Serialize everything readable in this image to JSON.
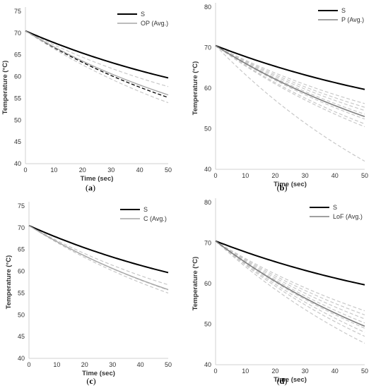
{
  "chart_data": [
    {
      "panel": "a",
      "caption": "(a)",
      "type": "line",
      "xlabel": "Time (sec)",
      "ylabel": "Temperature (°C)",
      "xlim": [
        0,
        50
      ],
      "ylim": [
        40,
        75
      ],
      "xticks": [
        0,
        10,
        20,
        30,
        40,
        50
      ],
      "yticks": [
        40,
        45,
        50,
        55,
        60,
        65,
        70,
        75
      ],
      "legend_position": "top-right",
      "legend": [
        {
          "name": "S",
          "color": "#000000"
        },
        {
          "name": "OP (Avg.)",
          "color": "#a6a6a6"
        }
      ],
      "series": [
        {
          "name": "S",
          "color": "#000000",
          "style": "solid",
          "width": 2,
          "x": [
            0,
            50
          ],
          "y": [
            70.5,
            59.7
          ]
        },
        {
          "name": "OP (Avg.)",
          "color": "#a6a6a6",
          "style": "solid",
          "width": 1.4,
          "x": [
            0,
            50
          ],
          "y": [
            70.5,
            55.8
          ]
        },
        {
          "color": "#c8c8c8",
          "style": "dashed",
          "width": 1.2,
          "x": [
            0,
            50
          ],
          "y": [
            70.5,
            57.7
          ]
        },
        {
          "color": "#000000",
          "style": "dashed",
          "width": 1.3,
          "x": [
            0,
            50
          ],
          "y": [
            70.5,
            55.2
          ]
        },
        {
          "color": "#c8c8c8",
          "style": "dashed",
          "width": 1.2,
          "x": [
            0,
            50
          ],
          "y": [
            70.5,
            54.0
          ]
        }
      ]
    },
    {
      "panel": "b",
      "caption": "(b)",
      "type": "line",
      "xlabel": "Time (sec)",
      "ylabel": "Temperature (°C)",
      "xlim": [
        0,
        50
      ],
      "ylim": [
        40,
        80
      ],
      "xticks": [
        0,
        10,
        20,
        30,
        40,
        50
      ],
      "yticks": [
        40,
        50,
        60,
        70,
        80
      ],
      "legend_position": "top-right",
      "legend": [
        {
          "name": "S",
          "color": "#000000"
        },
        {
          "name": "P (Avg.)",
          "color": "#808080"
        }
      ],
      "series": [
        {
          "name": "S",
          "color": "#000000",
          "style": "solid",
          "width": 2,
          "x": [
            0,
            50
          ],
          "y": [
            70.5,
            59.7
          ]
        },
        {
          "name": "P (Avg.)",
          "color": "#808080",
          "style": "solid",
          "width": 1.6,
          "x": [
            0,
            50
          ],
          "y": [
            70.5,
            53.0
          ]
        },
        {
          "color": "#c8c8c8",
          "style": "dashed",
          "width": 1.2,
          "x": [
            0,
            50
          ],
          "y": [
            70.5,
            56.2
          ]
        },
        {
          "color": "#c8c8c8",
          "style": "dashed",
          "width": 1.2,
          "x": [
            0,
            50
          ],
          "y": [
            70.5,
            55.3
          ]
        },
        {
          "color": "#c8c8c8",
          "style": "dashed",
          "width": 1.2,
          "x": [
            0,
            50
          ],
          "y": [
            70.5,
            54.5
          ]
        },
        {
          "color": "#c8c8c8",
          "style": "dashed",
          "width": 1.2,
          "x": [
            0,
            50
          ],
          "y": [
            70.5,
            53.6
          ]
        },
        {
          "color": "#c8c8c8",
          "style": "dashed",
          "width": 1.2,
          "x": [
            0,
            50
          ],
          "y": [
            70.5,
            52.4
          ]
        },
        {
          "color": "#c8c8c8",
          "style": "dashed",
          "width": 1.2,
          "x": [
            0,
            50
          ],
          "y": [
            70.5,
            51.2
          ]
        },
        {
          "color": "#c8c8c8",
          "style": "dashed",
          "width": 1.2,
          "x": [
            0,
            50
          ],
          "y": [
            70.5,
            50.5
          ]
        },
        {
          "color": "#c8c8c8",
          "style": "dashed",
          "width": 1.2,
          "x": [
            0,
            50
          ],
          "y": [
            70.5,
            42.0
          ]
        }
      ]
    },
    {
      "panel": "c",
      "caption": "(c)",
      "type": "line",
      "xlabel": "Time (sec)",
      "ylabel": "Temperature (°C)",
      "xlim": [
        0,
        50
      ],
      "ylim": [
        40,
        75
      ],
      "xticks": [
        0,
        10,
        20,
        30,
        40,
        50
      ],
      "yticks": [
        40,
        45,
        50,
        55,
        60,
        65,
        70,
        75
      ],
      "legend_position": "top-right",
      "legend": [
        {
          "name": "S",
          "color": "#000000"
        },
        {
          "name": "C (Avg.)",
          "color": "#a6a6a6"
        }
      ],
      "series": [
        {
          "name": "S",
          "color": "#000000",
          "style": "solid",
          "width": 2,
          "x": [
            0,
            50
          ],
          "y": [
            70.5,
            59.7
          ]
        },
        {
          "name": "C (Avg.)",
          "color": "#a6a6a6",
          "style": "solid",
          "width": 1.4,
          "x": [
            0,
            50
          ],
          "y": [
            70.5,
            55.8
          ]
        },
        {
          "color": "#c8c8c8",
          "style": "dashed",
          "width": 1.2,
          "x": [
            0,
            50
          ],
          "y": [
            70.5,
            56.9
          ]
        },
        {
          "color": "#c8c8c8",
          "style": "dashed",
          "width": 1.2,
          "x": [
            0,
            50
          ],
          "y": [
            70.5,
            55.7
          ]
        },
        {
          "color": "#c8c8c8",
          "style": "dashed",
          "width": 1.2,
          "x": [
            0,
            50
          ],
          "y": [
            70.5,
            55.0
          ]
        }
      ]
    },
    {
      "panel": "d",
      "caption": "(d)",
      "type": "line",
      "xlabel": "Time (sec)",
      "ylabel": "Temperature (°C)",
      "xlim": [
        0,
        50
      ],
      "ylim": [
        40,
        80
      ],
      "xticks": [
        0,
        10,
        20,
        30,
        40,
        50
      ],
      "yticks": [
        40,
        50,
        60,
        70,
        80
      ],
      "legend_position": "top-right",
      "legend": [
        {
          "name": "S",
          "color": "#000000"
        },
        {
          "name": "LoF (Avg.)",
          "color": "#808080"
        }
      ],
      "series": [
        {
          "name": "S",
          "color": "#000000",
          "style": "solid",
          "width": 2,
          "x": [
            0,
            50
          ],
          "y": [
            70.5,
            59.7
          ]
        },
        {
          "name": "LoF (Avg.)",
          "color": "#808080",
          "style": "solid",
          "width": 1.6,
          "x": [
            0,
            50
          ],
          "y": [
            70.5,
            49.5
          ]
        },
        {
          "color": "#c8c8c8",
          "style": "dashed",
          "width": 1.2,
          "x": [
            0,
            50
          ],
          "y": [
            70.5,
            53.3
          ]
        },
        {
          "color": "#c8c8c8",
          "style": "dashed",
          "width": 1.2,
          "x": [
            0,
            50
          ],
          "y": [
            70.5,
            52.3
          ]
        },
        {
          "color": "#c8c8c8",
          "style": "dashed",
          "width": 1.2,
          "x": [
            0,
            50
          ],
          "y": [
            70.5,
            51.3
          ]
        },
        {
          "color": "#c8c8c8",
          "style": "dashed",
          "width": 1.2,
          "x": [
            0,
            50
          ],
          "y": [
            70.5,
            50.3
          ]
        },
        {
          "color": "#c8c8c8",
          "style": "dashed",
          "width": 1.2,
          "x": [
            0,
            50
          ],
          "y": [
            70.5,
            49.0
          ]
        },
        {
          "color": "#c8c8c8",
          "style": "dashed",
          "width": 1.2,
          "x": [
            0,
            50
          ],
          "y": [
            70.5,
            48.0
          ]
        },
        {
          "color": "#c8c8c8",
          "style": "dashed",
          "width": 1.2,
          "x": [
            0,
            50
          ],
          "y": [
            70.5,
            47.0
          ]
        },
        {
          "color": "#c8c8c8",
          "style": "dashed",
          "width": 1.2,
          "x": [
            0,
            50
          ],
          "y": [
            70.5,
            45.3
          ]
        }
      ]
    }
  ]
}
